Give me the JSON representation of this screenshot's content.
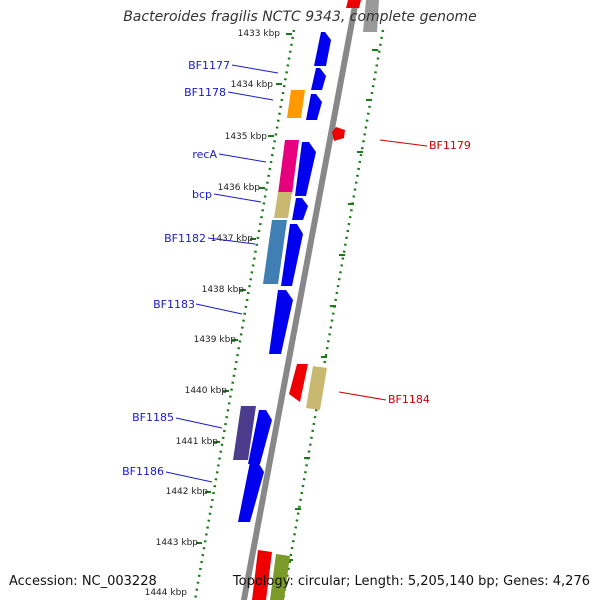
{
  "title": "Bacteroides fragilis NCTC 9343, complete genome",
  "footer": {
    "accession": "Accession: NC_003228",
    "topology": "Topology: circular; Length: 5,205,140 bp; Genes: 4,276"
  },
  "ticks": [
    {
      "label": "1433 kbp"
    },
    {
      "label": "1434 kbp"
    },
    {
      "label": "1435 kbp"
    },
    {
      "label": "1436 kbp"
    },
    {
      "label": "1437 kbp"
    },
    {
      "label": "1438 kbp"
    },
    {
      "label": "1439 kbp"
    },
    {
      "label": "1440 kbp"
    },
    {
      "label": "1441 kbp"
    },
    {
      "label": "1442 kbp"
    },
    {
      "label": "1443 kbp"
    },
    {
      "label": "1444 kbp"
    }
  ],
  "colors": {
    "blue": "#0000ee",
    "orange": "#ff9900",
    "magenta": "#e6007e",
    "khaki": "#c8b870",
    "steel": "#3f7fb4",
    "purple": "#4b3c8c",
    "red": "#ee0000",
    "green": "#7a9a2a",
    "gray": "#888888",
    "label_blue": "#1a1acc",
    "label_red": "#cc0000",
    "axis": "#999999",
    "tick_green": "#1a7a1a"
  },
  "genes_left": [
    {
      "name": "BF1177"
    },
    {
      "name": "BF1178"
    },
    {
      "name": "recA"
    },
    {
      "name": "bcp"
    },
    {
      "name": "BF1182"
    },
    {
      "name": "BF1183"
    },
    {
      "name": "BF1185"
    },
    {
      "name": "BF1186"
    }
  ],
  "genes_right": [
    {
      "name": "BF1179"
    },
    {
      "name": "BF1184"
    }
  ]
}
